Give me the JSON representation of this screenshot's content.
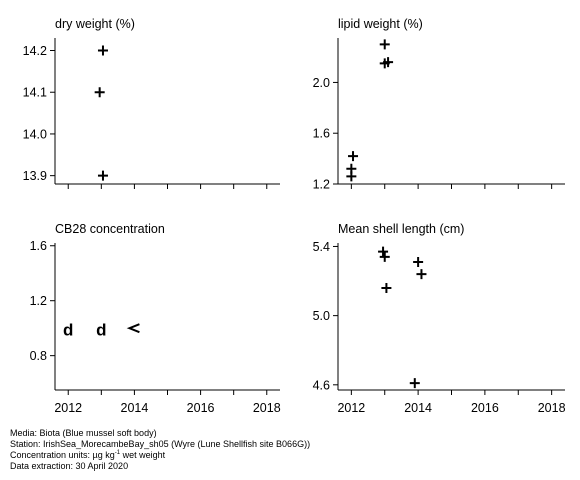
{
  "chart_data": [
    {
      "type": "scatter",
      "title": "dry weight (%)",
      "xlim": [
        2011.6,
        2018.4
      ],
      "ylim": [
        13.88,
        14.23
      ],
      "yticks": [
        {
          "value": 13.9,
          "label": "13.9"
        },
        {
          "value": 14.0,
          "label": "14.0"
        },
        {
          "value": 14.1,
          "label": "14.1"
        },
        {
          "value": 14.2,
          "label": "14.2"
        }
      ],
      "xticks": [
        2012,
        2013,
        2014,
        2015,
        2016,
        2017,
        2018
      ],
      "xtick_labels": [],
      "points": [
        {
          "x": 2013.05,
          "y": 14.2,
          "marker": "+"
        },
        {
          "x": 2012.95,
          "y": 14.1,
          "marker": "+"
        },
        {
          "x": 2013.05,
          "y": 13.9,
          "marker": "+"
        }
      ]
    },
    {
      "type": "scatter",
      "title": "lipid weight (%)",
      "xlim": [
        2011.6,
        2018.4
      ],
      "ylim": [
        1.2,
        2.35
      ],
      "yticks": [
        {
          "value": 1.2,
          "label": "1.2"
        },
        {
          "value": 1.6,
          "label": "1.6"
        },
        {
          "value": 2.0,
          "label": "2.0"
        }
      ],
      "xticks": [
        2012,
        2013,
        2014,
        2015,
        2016,
        2017,
        2018
      ],
      "xtick_labels": [],
      "points": [
        {
          "x": 2013.0,
          "y": 2.3,
          "marker": "+"
        },
        {
          "x": 2013.0,
          "y": 2.15,
          "marker": "+"
        },
        {
          "x": 2013.1,
          "y": 2.16,
          "marker": "+"
        },
        {
          "x": 2012.05,
          "y": 1.42,
          "marker": "+"
        },
        {
          "x": 2012.0,
          "y": 1.32,
          "marker": "+"
        },
        {
          "x": 2012.0,
          "y": 1.26,
          "marker": "+"
        }
      ]
    },
    {
      "type": "scatter",
      "title": "CB28 concentration",
      "xlim": [
        2011.6,
        2018.4
      ],
      "ylim": [
        0.55,
        1.62
      ],
      "yticks": [
        {
          "value": 0.8,
          "label": "0.8"
        },
        {
          "value": 1.2,
          "label": "1.2"
        },
        {
          "value": 1.6,
          "label": "1.6"
        }
      ],
      "xticks": [
        2012,
        2013,
        2014,
        2015,
        2016,
        2017,
        2018
      ],
      "xtick_labels": [
        "2012",
        "2014",
        "2016",
        "2018"
      ],
      "points": [
        {
          "x": 2012.0,
          "y": 0.99,
          "marker": "d"
        },
        {
          "x": 2013.0,
          "y": 0.99,
          "marker": "d"
        },
        {
          "x": 2014.0,
          "y": 1.0,
          "marker": "<"
        }
      ]
    },
    {
      "type": "scatter",
      "title": "Mean shell length (cm)",
      "xlim": [
        2011.6,
        2018.4
      ],
      "ylim": [
        4.57,
        5.42
      ],
      "yticks": [
        {
          "value": 4.6,
          "label": "4.6"
        },
        {
          "value": 5.0,
          "label": "5.0"
        },
        {
          "value": 5.4,
          "label": "5.4"
        }
      ],
      "xticks": [
        2012,
        2013,
        2014,
        2015,
        2016,
        2017,
        2018
      ],
      "xtick_labels": [
        "2012",
        "2014",
        "2016",
        "2018"
      ],
      "points": [
        {
          "x": 2012.95,
          "y": 5.37,
          "marker": "+"
        },
        {
          "x": 2013.0,
          "y": 5.34,
          "marker": "+"
        },
        {
          "x": 2013.05,
          "y": 5.16,
          "marker": "+"
        },
        {
          "x": 2014.0,
          "y": 5.31,
          "marker": "+"
        },
        {
          "x": 2014.1,
          "y": 5.24,
          "marker": "+"
        },
        {
          "x": 2013.9,
          "y": 4.61,
          "marker": "+"
        }
      ]
    }
  ],
  "footer": {
    "media": "Media: Biota (Blue mussel soft body)",
    "station": "Station: IrishSea_MorecambeBay_sh05 (Wyre (Lune Shellfish site B066G))",
    "units_prefix": "Concentration units:  µg kg",
    "units_exp": "-1",
    "units_suffix": " wet weight",
    "extraction": "Data extraction: 30 April 2020"
  }
}
